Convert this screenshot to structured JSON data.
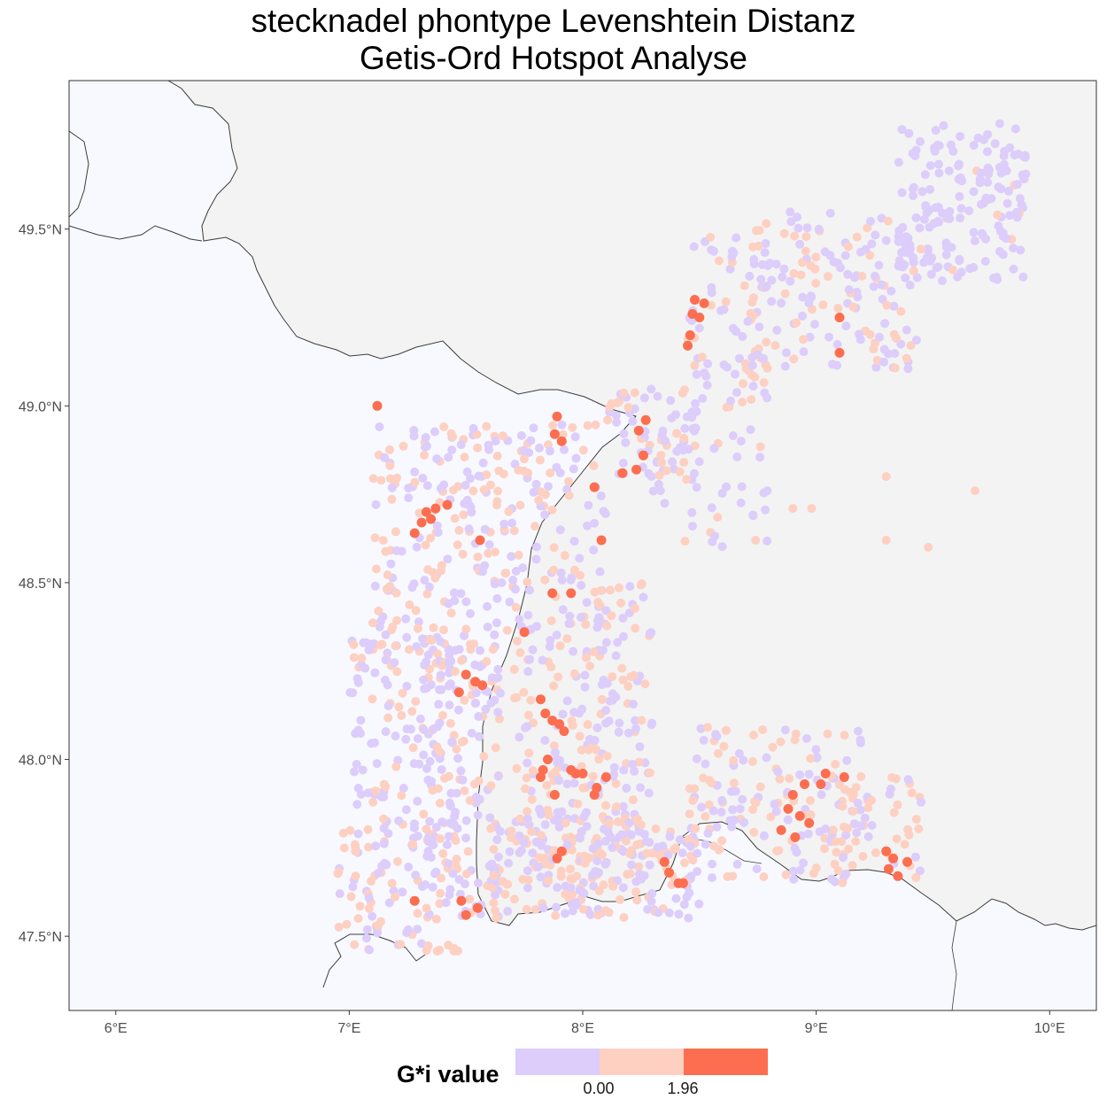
{
  "title_line1": "stecknadel phontype Levenshtein Distanz",
  "title_line2": "Getis-Ord Hotspot Analyse",
  "x_axis": {
    "ticks": [
      "6°E",
      "7°E",
      "8°E",
      "9°E",
      "10°E"
    ],
    "values": [
      6,
      7,
      8,
      9,
      10
    ],
    "range": [
      5.8,
      10.2
    ]
  },
  "y_axis": {
    "ticks": [
      "47.5°N",
      "48.0°N",
      "48.5°N",
      "49.0°N",
      "49.5°N"
    ],
    "values": [
      47.5,
      48.0,
      48.5,
      49.0,
      49.5
    ],
    "range": [
      47.29,
      49.92
    ]
  },
  "legend": {
    "title": "G*i value",
    "breaks": [
      "0.00",
      "1.96"
    ],
    "colors": [
      "#dccdfb",
      "#fdd0c2",
      "#fc6e4f"
    ]
  },
  "colors": {
    "panel_background": "#f8f9fe",
    "land_fill": "#f3f3f3",
    "border_line": "#3c3c3c"
  },
  "chart_data": {
    "type": "scatter",
    "title": "stecknadel phontype Levenshtein Distanz\nGetis-Ord Hotspot Analyse",
    "xlabel": "",
    "ylabel": "",
    "xlim": [
      5.8,
      10.2
    ],
    "ylim": [
      47.29,
      49.92
    ],
    "classes": [
      {
        "name": "< 0.00",
        "color": "#dccdfb"
      },
      {
        "name": "0.00 – 1.96",
        "color": "#fdd0c2"
      },
      {
        "name": "> 1.96",
        "color": "#fc6e4f"
      }
    ],
    "hotspot_points": [
      [
        7.12,
        49.0
      ],
      [
        8.48,
        49.3
      ],
      [
        8.52,
        49.29
      ],
      [
        8.47,
        49.26
      ],
      [
        8.5,
        49.25
      ],
      [
        8.46,
        49.2
      ],
      [
        8.45,
        49.17
      ],
      [
        9.1,
        49.25
      ],
      [
        9.1,
        49.15
      ],
      [
        7.89,
        48.97
      ],
      [
        7.88,
        48.92
      ],
      [
        7.91,
        48.9
      ],
      [
        8.27,
        48.96
      ],
      [
        8.24,
        48.93
      ],
      [
        8.26,
        48.86
      ],
      [
        8.23,
        48.82
      ],
      [
        8.17,
        48.81
      ],
      [
        8.05,
        48.77
      ],
      [
        7.33,
        48.7
      ],
      [
        7.37,
        48.71
      ],
      [
        7.35,
        48.68
      ],
      [
        7.31,
        48.67
      ],
      [
        7.28,
        48.64
      ],
      [
        7.42,
        48.72
      ],
      [
        7.56,
        48.62
      ],
      [
        8.08,
        48.62
      ],
      [
        7.87,
        48.47
      ],
      [
        7.95,
        48.47
      ],
      [
        7.75,
        48.36
      ],
      [
        7.5,
        48.24
      ],
      [
        7.54,
        48.22
      ],
      [
        7.57,
        48.21
      ],
      [
        7.47,
        48.19
      ],
      [
        7.82,
        48.17
      ],
      [
        7.84,
        48.13
      ],
      [
        7.87,
        48.11
      ],
      [
        7.9,
        48.1
      ],
      [
        7.92,
        48.08
      ],
      [
        7.85,
        48.0
      ],
      [
        7.83,
        47.97
      ],
      [
        7.82,
        47.95
      ],
      [
        7.95,
        47.97
      ],
      [
        7.97,
        47.96
      ],
      [
        8.0,
        47.96
      ],
      [
        8.1,
        47.95
      ],
      [
        8.06,
        47.92
      ],
      [
        8.05,
        47.9
      ],
      [
        7.88,
        47.9
      ],
      [
        7.91,
        47.74
      ],
      [
        7.89,
        47.72
      ],
      [
        8.35,
        47.71
      ],
      [
        8.37,
        47.68
      ],
      [
        8.41,
        47.65
      ],
      [
        8.43,
        47.65
      ],
      [
        7.55,
        47.58
      ],
      [
        7.48,
        47.6
      ],
      [
        7.5,
        47.56
      ],
      [
        7.28,
        47.6
      ],
      [
        8.95,
        47.93
      ],
      [
        8.9,
        47.9
      ],
      [
        8.88,
        47.86
      ],
      [
        8.93,
        47.84
      ],
      [
        8.97,
        47.82
      ],
      [
        8.91,
        47.78
      ],
      [
        8.85,
        47.8
      ],
      [
        9.02,
        47.93
      ],
      [
        9.04,
        47.96
      ],
      [
        9.12,
        47.95
      ],
      [
        9.3,
        47.74
      ],
      [
        9.33,
        47.72
      ],
      [
        9.31,
        47.69
      ],
      [
        9.35,
        47.67
      ],
      [
        9.39,
        47.71
      ]
    ]
  }
}
